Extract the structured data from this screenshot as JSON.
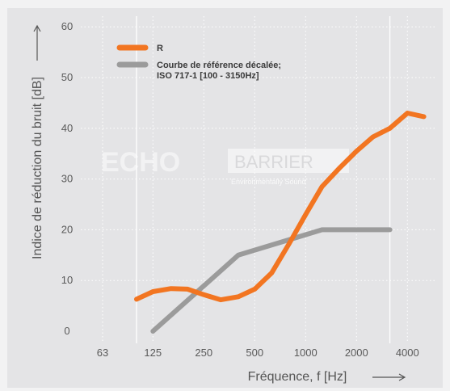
{
  "chart_data": {
    "type": "line",
    "title": "",
    "xlabel": "Fréquence, f [Hz]",
    "ylabel": "Indice de réduction du bruit [dB]",
    "ylim": [
      0,
      60
    ],
    "y_ticks": [
      "0",
      "10",
      "20",
      "30",
      "40",
      "50",
      "60"
    ],
    "x_tick_labels": [
      "63",
      "125",
      "250",
      "500",
      "1000",
      "2000",
      "4000"
    ],
    "x_tick_values": [
      63,
      125,
      250,
      500,
      1000,
      2000,
      4000
    ],
    "x_scale": "log",
    "grid": true,
    "legend_position": "top-left",
    "series": [
      {
        "name": "R",
        "color": "#f27521",
        "x": [
          100,
          125,
          160,
          200,
          250,
          315,
          400,
          500,
          630,
          800,
          1000,
          1250,
          1600,
          2000,
          2500,
          3150,
          4000,
          5000
        ],
        "y": [
          6.3,
          7.8,
          8.4,
          8.3,
          7.2,
          6.2,
          6.8,
          8.3,
          11.5,
          17.3,
          23.0,
          28.5,
          32.3,
          35.5,
          38.3,
          40.0,
          43.0,
          42.3
        ]
      },
      {
        "name": "Courbe de référence décalée; ISO 717-1 [100 - 3150Hz]",
        "color": "#9b9b9b",
        "x": [
          125,
          400,
          1250,
          3150
        ],
        "y": [
          0,
          15,
          20,
          20
        ]
      }
    ],
    "axis_arrows": true
  },
  "watermark": {
    "brand": "ECHO",
    "brand2": "BARRIER",
    "tagline": "Environmentally Sound"
  },
  "colors": {
    "background": "#f2f2f3",
    "plot_background": "#e4e4e6",
    "grid": "#ffffff"
  }
}
